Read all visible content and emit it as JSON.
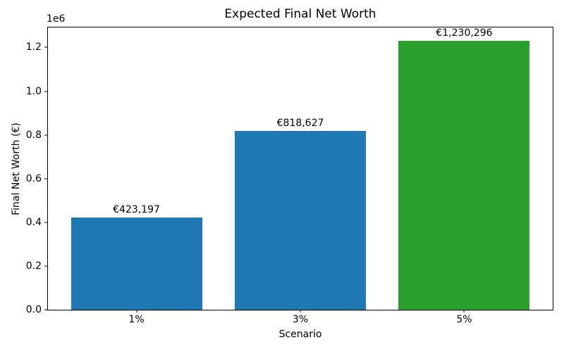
{
  "figure": {
    "background": "#ffffff"
  },
  "chart_data": {
    "type": "bar",
    "title": "Expected Final Net Worth",
    "xlabel": "Scenario",
    "ylabel": "Final Net Worth (€)",
    "offset_text": "1e6",
    "categories": [
      "1%",
      "3%",
      "5%"
    ],
    "values": [
      423197,
      818627,
      1230296
    ],
    "value_labels": [
      "€423,197",
      "€818,627",
      "€1,230,296"
    ],
    "bar_colors": [
      "#1f77b4",
      "#1f77b4",
      "#2ca02c"
    ],
    "ylim": [
      0,
      1291811
    ],
    "yticks": [
      0,
      200000,
      400000,
      600000,
      800000,
      1000000,
      1200000
    ],
    "ytick_labels": [
      "0.0",
      "0.2",
      "0.4",
      "0.6",
      "0.8",
      "1.0",
      "1.2"
    ],
    "bar_width_fraction": 0.8,
    "grid": false,
    "legend": null
  }
}
